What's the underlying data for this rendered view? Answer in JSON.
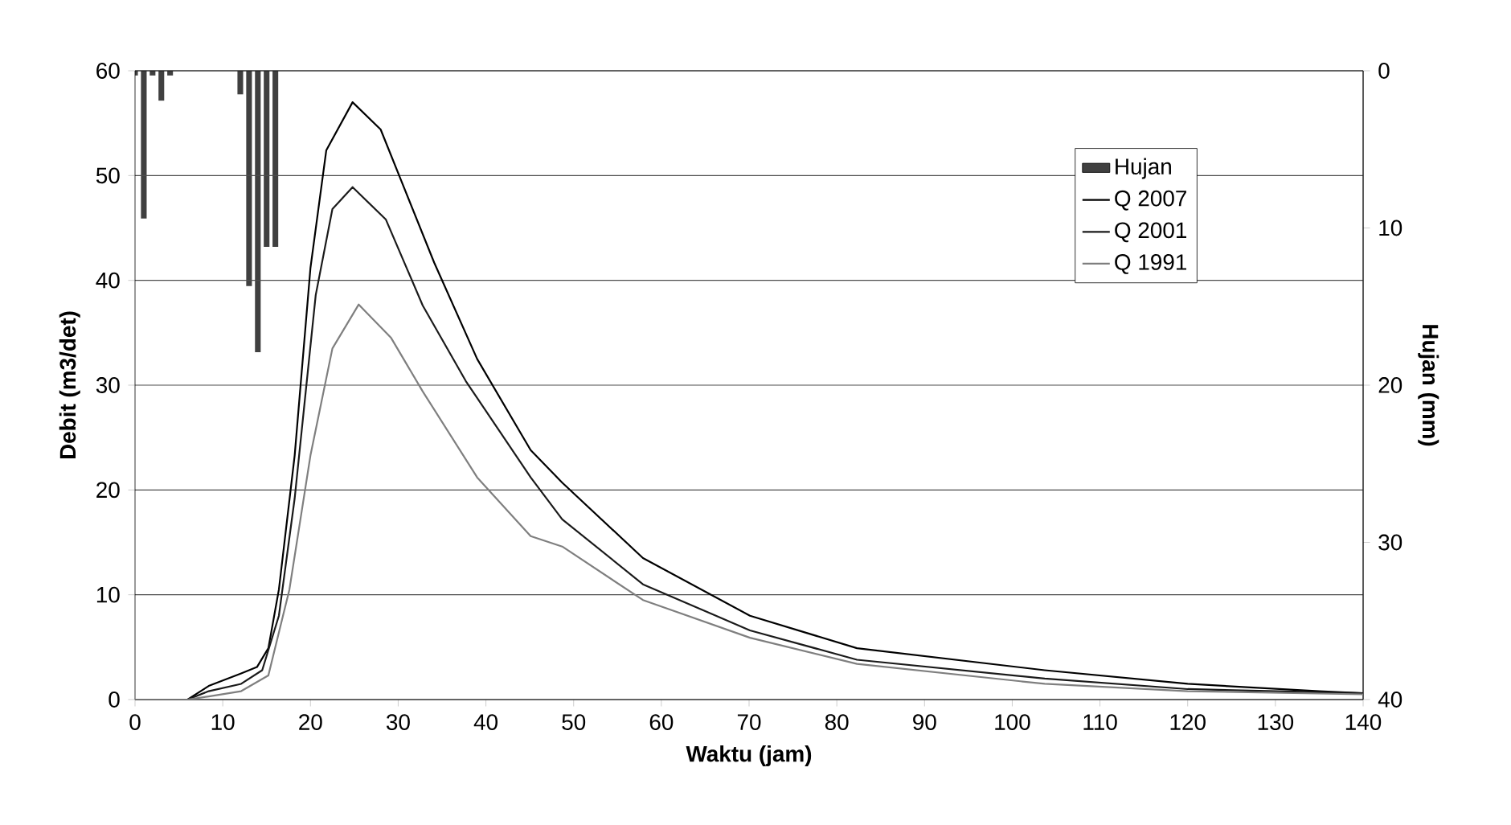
{
  "chart_data": {
    "type": "line",
    "xlabel": "Waktu (jam)",
    "ylabel": "Debit (m3/det)",
    "y2label": "Hujan (mm)",
    "xlim": [
      0,
      140
    ],
    "xticks": [
      0,
      10,
      20,
      30,
      40,
      50,
      60,
      70,
      80,
      90,
      100,
      110,
      120,
      130,
      140
    ],
    "ylim": [
      0,
      60
    ],
    "yticks": [
      0,
      10,
      20,
      30,
      40,
      50,
      60
    ],
    "y2lim": [
      40,
      0
    ],
    "y2ticks": [
      0,
      10,
      20,
      30,
      40
    ],
    "grid": "y",
    "legend": "top right",
    "series": [
      {
        "name": "Hujan",
        "type": "bar",
        "axis": "y2",
        "color": "#404040",
        "x": [
          0,
          1,
          2,
          3,
          4,
          12,
          13,
          14,
          15,
          16
        ],
        "values": [
          0.3,
          9.4,
          0.3,
          1.9,
          0.3,
          1.5,
          13.7,
          17.9,
          11.2,
          11.2
        ]
      },
      {
        "name": "Q 2007",
        "color": "#000000",
        "x": [
          0,
          6,
          8.4,
          12.1,
          13.9,
          15.2,
          16.4,
          18.2,
          20.0,
          21.8,
          24.8,
          28.0,
          30.4,
          34.1,
          39.0,
          45.1,
          48.7,
          57.9,
          70.1,
          82.3,
          103.7,
          120,
          135,
          140
        ],
        "values": [
          0,
          0,
          1.3,
          2.5,
          3.1,
          4.9,
          10.5,
          23.3,
          41.2,
          52.4,
          57.0,
          54.4,
          49.4,
          41.7,
          32.5,
          23.8,
          20.7,
          13.5,
          8.0,
          4.9,
          2.8,
          1.5,
          0.8,
          0.6
        ]
      },
      {
        "name": "Q 2001",
        "color": "#1a1a1a",
        "x": [
          0,
          6,
          8.4,
          12.1,
          14.5,
          16.4,
          18.2,
          20.6,
          22.5,
          24.8,
          28.6,
          32.8,
          37.7,
          45.1,
          48.7,
          57.9,
          70.1,
          82.3,
          103.7,
          120,
          140
        ],
        "values": [
          0,
          0,
          0.8,
          1.5,
          2.8,
          8.0,
          19.2,
          38.6,
          46.8,
          48.9,
          45.8,
          37.6,
          30.4,
          21.2,
          17.2,
          11.0,
          6.6,
          3.8,
          2.0,
          1.0,
          0.6
        ]
      },
      {
        "name": "Q 1991",
        "color": "#7f7f7f",
        "x": [
          0,
          6,
          8.4,
          12.1,
          15.2,
          17.6,
          20.0,
          22.5,
          25.5,
          29.2,
          32.8,
          39.0,
          45.1,
          48.7,
          57.9,
          70.1,
          82.3,
          103.7,
          120,
          140
        ],
        "values": [
          0,
          0,
          0.3,
          0.8,
          2.3,
          10.5,
          23.3,
          33.5,
          37.7,
          34.5,
          29.4,
          21.2,
          15.6,
          14.6,
          9.5,
          5.9,
          3.4,
          1.5,
          0.8,
          0.5
        ]
      }
    ]
  }
}
